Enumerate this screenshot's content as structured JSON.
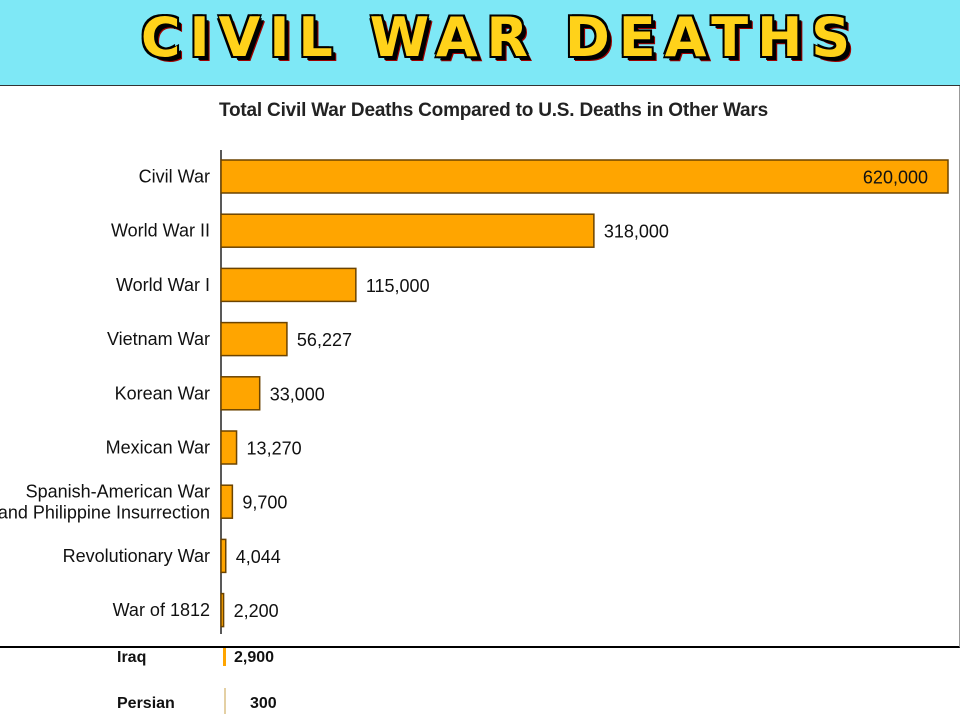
{
  "header": {
    "title": "CIVIL WAR DEATHS"
  },
  "chart_data": {
    "type": "bar",
    "orientation": "horizontal",
    "title": "Total Civil War Deaths Compared to U.S. Deaths in Other Wars",
    "categories": [
      "Civil War",
      "World War II",
      "World War I",
      "Vietnam War",
      "Korean War",
      "Mexican War",
      "Spanish-American War\nand Philippine Insurrection",
      "Revolutionary War",
      "War of 1812"
    ],
    "values": [
      620000,
      318000,
      115000,
      56227,
      33000,
      13270,
      9700,
      4044,
      2200
    ],
    "value_labels": [
      "620,000",
      "318,000",
      "115,000",
      "56,227",
      "33,000",
      "13,270",
      "9,700",
      "4,044",
      "2,200"
    ],
    "bar_color": "#ffa500",
    "xlabel": "",
    "ylabel": "",
    "extra_rows": [
      {
        "label": "Iraq",
        "value": 2900,
        "value_label": "2,900"
      },
      {
        "label": "Persian",
        "value": 300,
        "value_label": "300"
      }
    ]
  }
}
